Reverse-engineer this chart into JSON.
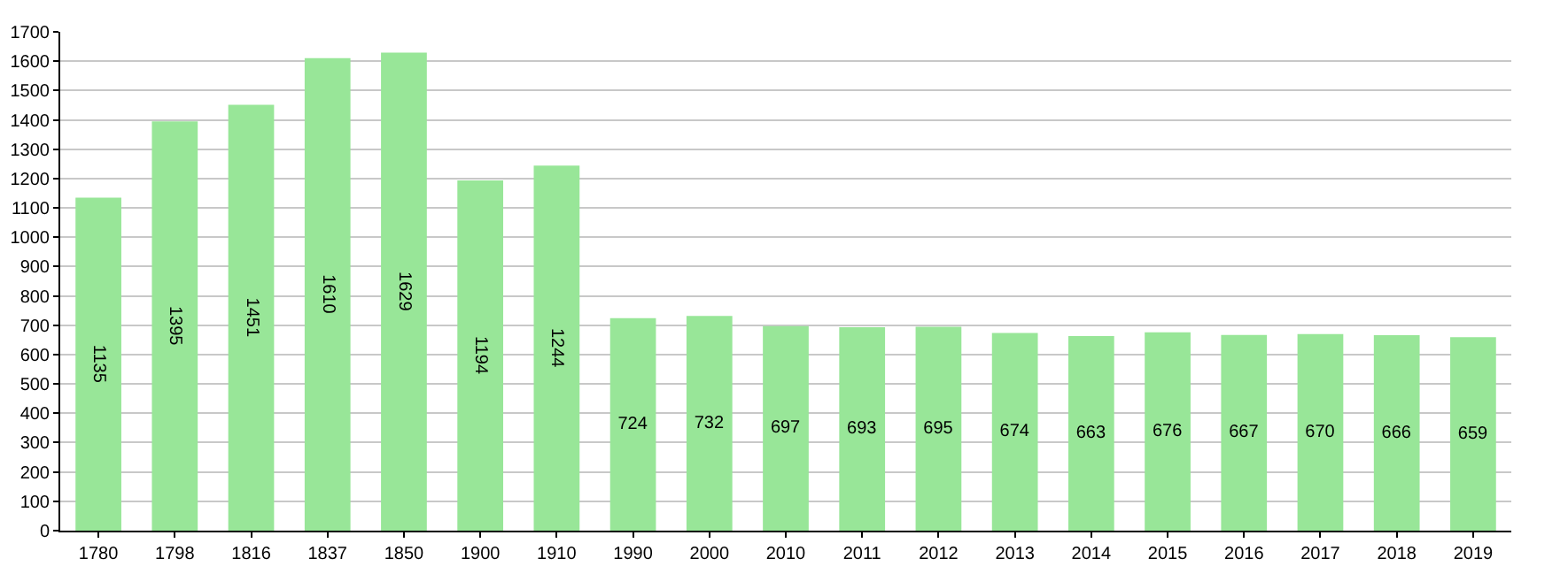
{
  "chart_data": {
    "type": "bar",
    "categories": [
      "1780",
      "1798",
      "1816",
      "1837",
      "1850",
      "1900",
      "1910",
      "1990",
      "2000",
      "2010",
      "2011",
      "2012",
      "2013",
      "2014",
      "2015",
      "2016",
      "2017",
      "2018",
      "2019"
    ],
    "values": [
      1135,
      1395,
      1451,
      1610,
      1629,
      1194,
      1244,
      724,
      732,
      697,
      693,
      695,
      674,
      663,
      676,
      667,
      670,
      666,
      659
    ],
    "color": "#98e698",
    "ylim": [
      0,
      1700
    ],
    "yticks": [
      0,
      100,
      200,
      300,
      400,
      500,
      600,
      700,
      800,
      900,
      1000,
      1100,
      1200,
      1300,
      1400,
      1500,
      1600,
      1700
    ],
    "grid": "y",
    "data_labels": true,
    "legend": false
  }
}
